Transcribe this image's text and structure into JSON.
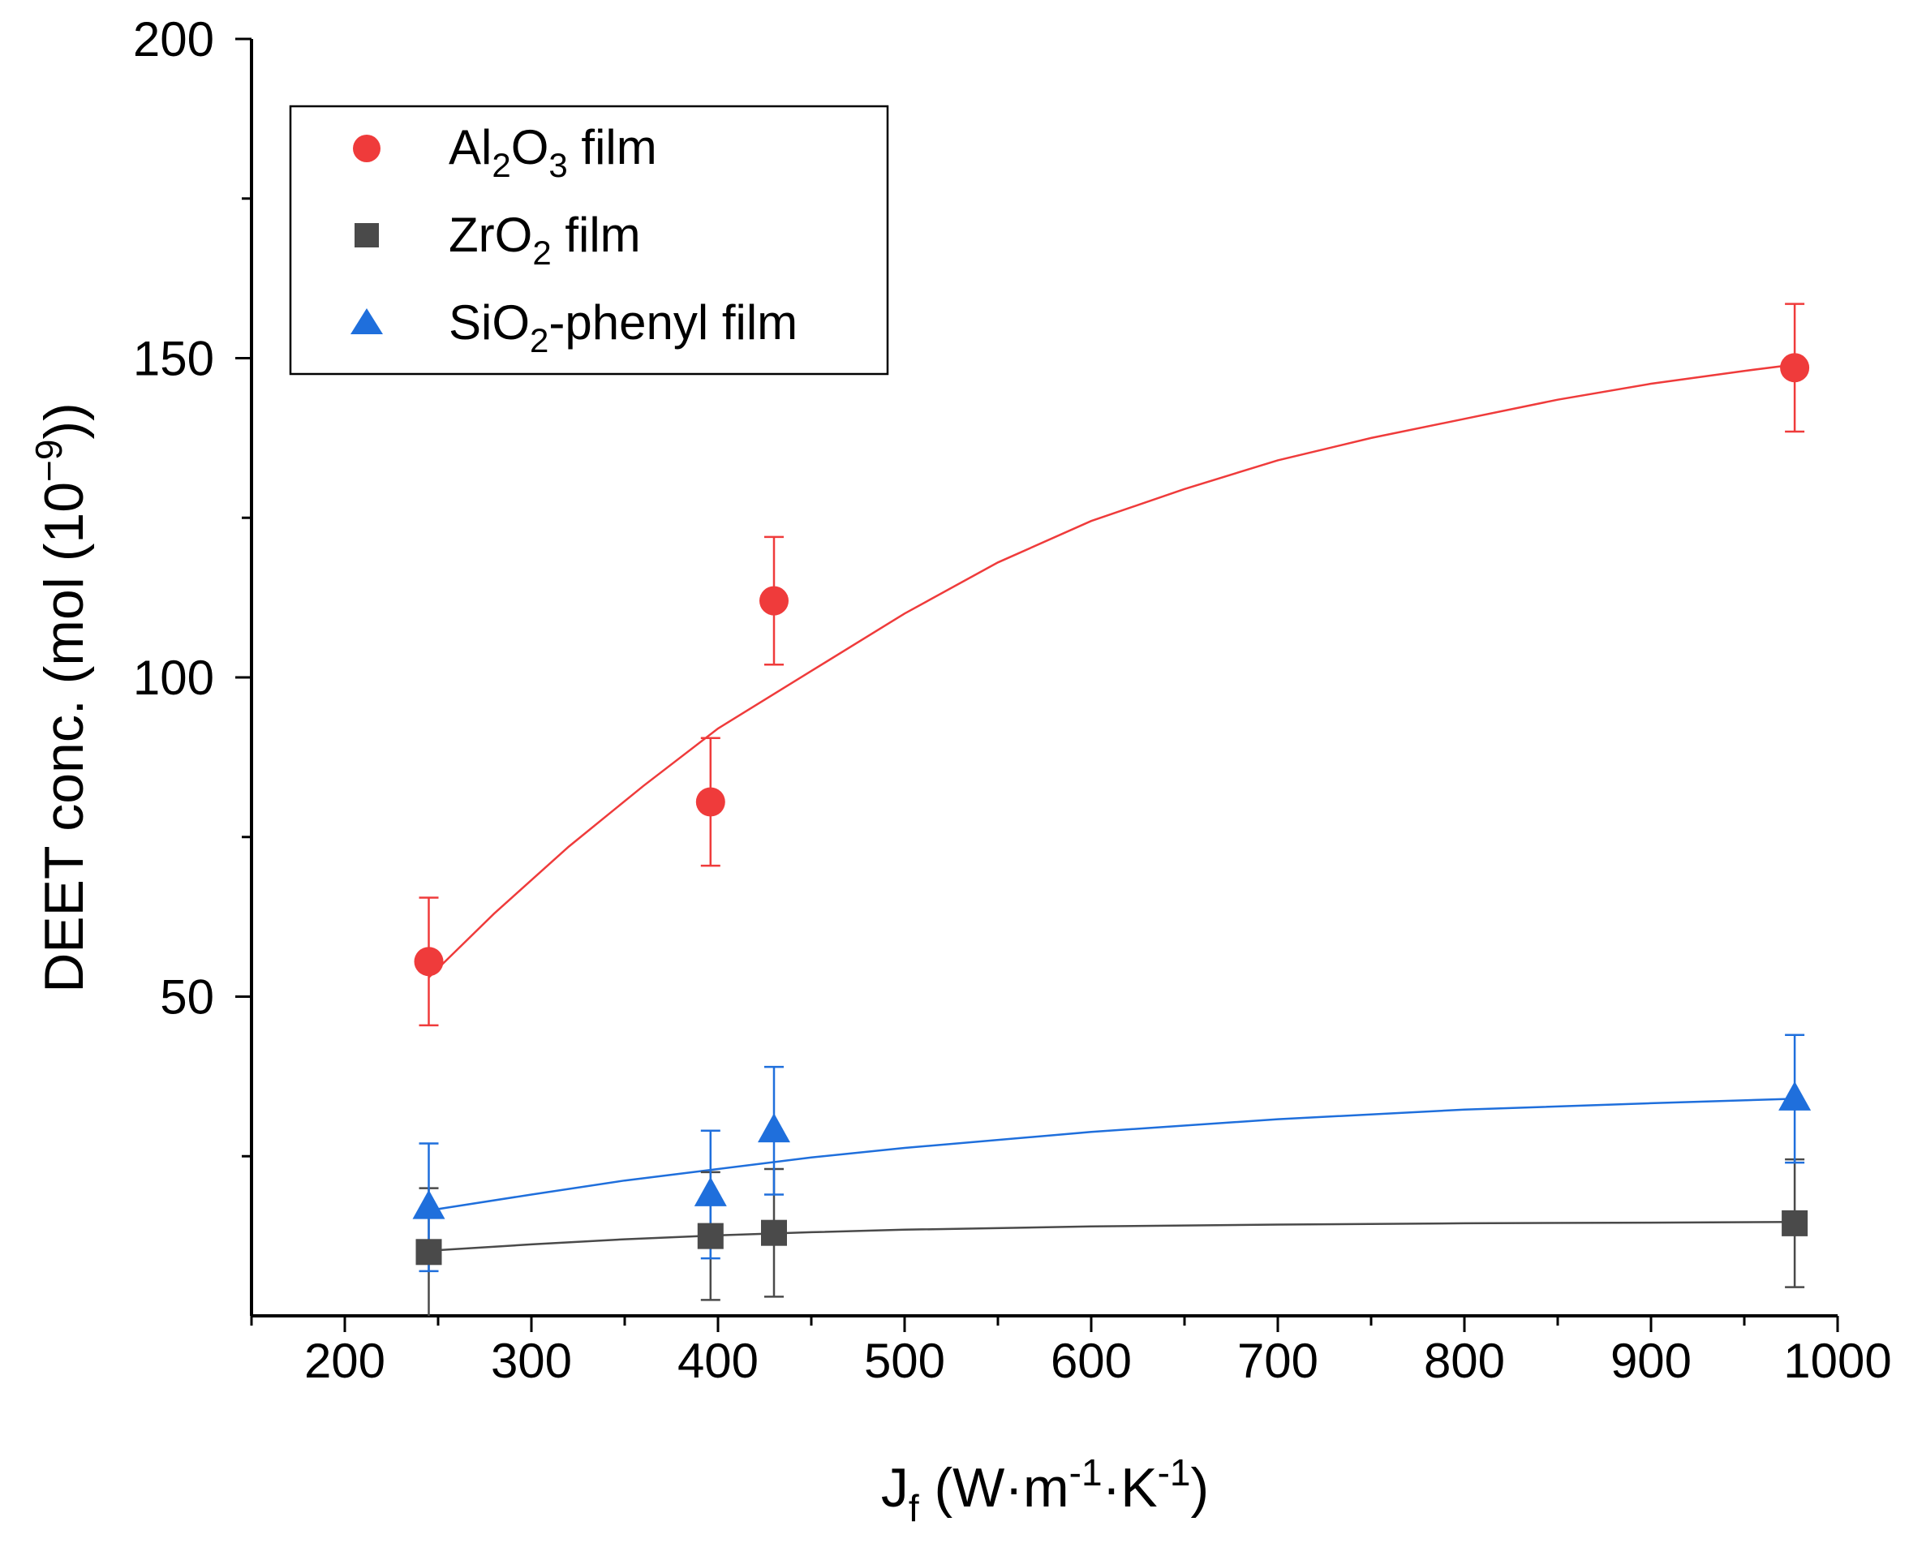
{
  "chart_data": {
    "type": "scatter",
    "xlabel": "J",
    "xlabel_subscript": "f",
    "xlabel_units_open": " (W·m",
    "xlabel_exp1": "-1",
    "xlabel_mid": "·K",
    "xlabel_exp2": "-1",
    "xlabel_close": ")",
    "ylabel": "DEET conc. (mol (10",
    "ylabel_exp": "−9",
    "ylabel_close": "))",
    "xlim": [
      150,
      1000
    ],
    "ylim": [
      0,
      200
    ],
    "xticks": [
      200,
      300,
      400,
      500,
      600,
      700,
      800,
      900,
      1000
    ],
    "yticks": [
      50,
      100,
      150,
      200
    ],
    "legend_position": "top-left",
    "series": [
      {
        "name": "Al2O3 film",
        "label_parts": [
          "Al",
          "2",
          "O",
          "3",
          " film"
        ],
        "marker": "circle",
        "color": "#ef3b3b",
        "points": [
          {
            "x": 245,
            "y": 55.5,
            "err": 10
          },
          {
            "x": 396,
            "y": 80.5,
            "err": 10
          },
          {
            "x": 430,
            "y": 112,
            "err": 10
          },
          {
            "x": 977,
            "y": 148.5,
            "err": 10
          }
        ],
        "fit": [
          [
            245,
            53
          ],
          [
            280,
            63
          ],
          [
            320,
            73.5
          ],
          [
            360,
            83
          ],
          [
            400,
            92
          ],
          [
            450,
            101
          ],
          [
            500,
            110
          ],
          [
            550,
            118
          ],
          [
            600,
            124.5
          ],
          [
            650,
            129.5
          ],
          [
            700,
            134
          ],
          [
            750,
            137.5
          ],
          [
            800,
            140.5
          ],
          [
            850,
            143.5
          ],
          [
            900,
            146
          ],
          [
            950,
            148
          ],
          [
            977,
            149
          ]
        ]
      },
      {
        "name": "ZrO2 film",
        "label_parts": [
          "ZrO",
          "2",
          " film"
        ],
        "marker": "square",
        "color": "#4a4a4a",
        "points": [
          {
            "x": 245,
            "y": 10,
            "err": 10
          },
          {
            "x": 396,
            "y": 12.5,
            "err": 10
          },
          {
            "x": 430,
            "y": 13,
            "err": 10
          },
          {
            "x": 977,
            "y": 14.5,
            "err": 10
          }
        ],
        "fit": [
          [
            245,
            10.2
          ],
          [
            300,
            11.2
          ],
          [
            350,
            12
          ],
          [
            400,
            12.6
          ],
          [
            450,
            13.1
          ],
          [
            500,
            13.5
          ],
          [
            600,
            14
          ],
          [
            700,
            14.3
          ],
          [
            800,
            14.5
          ],
          [
            900,
            14.6
          ],
          [
            977,
            14.7
          ]
        ]
      },
      {
        "name": "SiO2-phenyl film",
        "label_parts": [
          "SiO",
          "2",
          "-phenyl film"
        ],
        "marker": "triangle",
        "color": "#1f6fdc",
        "points": [
          {
            "x": 245,
            "y": 17,
            "err": 10
          },
          {
            "x": 396,
            "y": 19,
            "err": 10
          },
          {
            "x": 430,
            "y": 29,
            "err": 10
          },
          {
            "x": 977,
            "y": 34,
            "err": 10
          }
        ],
        "fit": [
          [
            245,
            16.5
          ],
          [
            300,
            19
          ],
          [
            350,
            21.2
          ],
          [
            400,
            23
          ],
          [
            450,
            24.8
          ],
          [
            500,
            26.3
          ],
          [
            600,
            28.8
          ],
          [
            700,
            30.8
          ],
          [
            800,
            32.3
          ],
          [
            900,
            33.3
          ],
          [
            977,
            34
          ]
        ]
      }
    ]
  }
}
